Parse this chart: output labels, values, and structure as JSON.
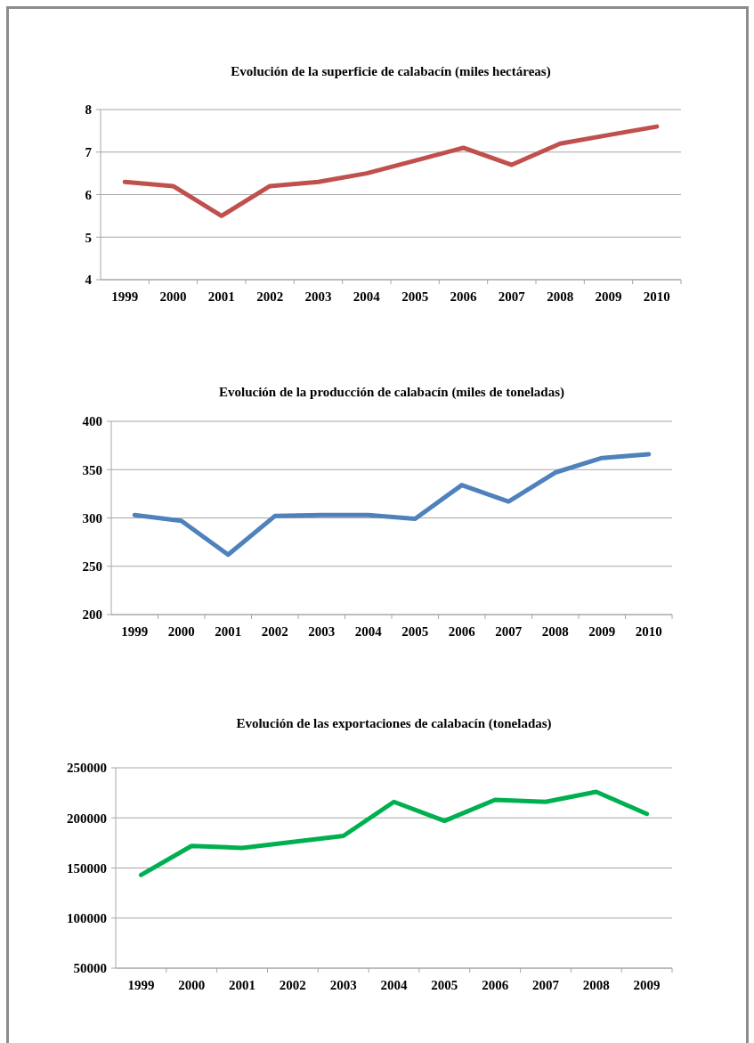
{
  "chart_data": [
    {
      "type": "line",
      "title": "Evolución de la superficie de calabacín (miles hectáreas)",
      "categories": [
        "1999",
        "2000",
        "2001",
        "2002",
        "2003",
        "2004",
        "2005",
        "2006",
        "2007",
        "2008",
        "2009",
        "2010"
      ],
      "series": [
        {
          "color": "#c0504d",
          "values": [
            6.3,
            6.2,
            5.5,
            6.2,
            6.3,
            6.5,
            6.8,
            7.1,
            6.7,
            7.2,
            7.4,
            7.6
          ]
        }
      ],
      "ylim": [
        4,
        8
      ],
      "yticks": [
        4,
        5,
        6,
        7,
        8
      ],
      "grid": "y",
      "marker": "none",
      "line_style": "solid"
    },
    {
      "type": "line",
      "title": "Evolución de la producción de calabacín (miles de toneladas)",
      "categories": [
        "1999",
        "2000",
        "2001",
        "2002",
        "2003",
        "2004",
        "2005",
        "2006",
        "2007",
        "2008",
        "2009",
        "2010"
      ],
      "series": [
        {
          "color": "#4f81bd",
          "values": [
            303,
            297,
            262,
            302,
            303,
            303,
            299,
            334,
            317,
            347,
            362,
            366
          ]
        }
      ],
      "ylim": [
        200,
        400
      ],
      "yticks": [
        200,
        250,
        300,
        350,
        400
      ],
      "grid": "y",
      "marker": "none",
      "line_style": "solid"
    },
    {
      "type": "line",
      "title": "Evolución de las exportaciones de calabacín (toneladas)",
      "categories": [
        "1999",
        "2000",
        "2001",
        "2002",
        "2003",
        "2004",
        "2005",
        "2006",
        "2007",
        "2008",
        "2009"
      ],
      "series": [
        {
          "color": "#00b050",
          "values": [
            143000,
            172000,
            170000,
            176000,
            182000,
            216000,
            197000,
            218000,
            216000,
            226000,
            204000
          ]
        }
      ],
      "ylim": [
        50000,
        250000
      ],
      "yticks": [
        50000,
        100000,
        150000,
        200000,
        250000
      ],
      "grid": "y",
      "marker": "none",
      "line_style": "solid"
    }
  ]
}
